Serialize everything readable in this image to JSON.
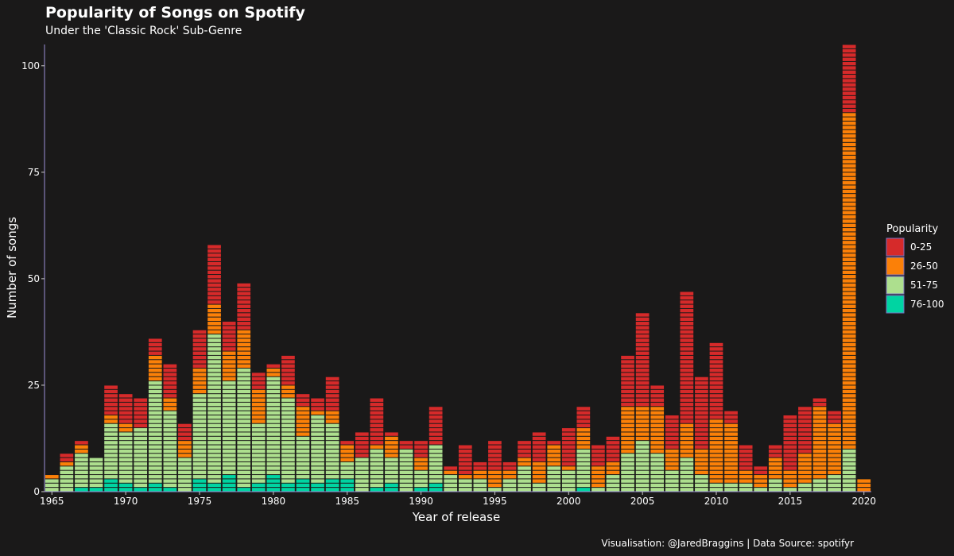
{
  "chart_data": {
    "type": "bar",
    "stacked": true,
    "title": "Popularity of Songs on Spotify",
    "subtitle": "Under the 'Classic Rock' Sub-Genre",
    "xlabel": "Year of release",
    "ylabel": "Number of songs",
    "caption": "Visualisation: @JaredBraggins | Data Source: spotifyr",
    "ylim": [
      0,
      105
    ],
    "xlim": [
      1964.5,
      2020.5
    ],
    "x_ticks": [
      1965,
      1970,
      1975,
      1980,
      1985,
      1990,
      1995,
      2000,
      2005,
      2010,
      2015,
      2020
    ],
    "y_ticks": [
      0,
      25,
      50,
      75,
      100
    ],
    "grid": false,
    "legend": {
      "title": "Popularity",
      "placement": "right"
    },
    "colors": {
      "0-25": "#d62a2a",
      "26-50": "#fb8008",
      "51-75": "#addf8e",
      "76-100": "#00d4a2"
    },
    "series_order": [
      "76-100",
      "51-75",
      "26-50",
      "0-25"
    ],
    "x": [
      1965,
      1966,
      1967,
      1968,
      1969,
      1970,
      1971,
      1972,
      1973,
      1974,
      1975,
      1976,
      1977,
      1978,
      1979,
      1980,
      1981,
      1982,
      1983,
      1984,
      1985,
      1986,
      1987,
      1988,
      1989,
      1990,
      1991,
      1992,
      1993,
      1994,
      1995,
      1996,
      1997,
      1998,
      1999,
      2000,
      2001,
      2002,
      2003,
      2004,
      2005,
      2006,
      2007,
      2008,
      2009,
      2010,
      2011,
      2012,
      2013,
      2014,
      2015,
      2016,
      2017,
      2018,
      2019,
      2020
    ],
    "series": [
      {
        "name": "76-100",
        "values": [
          0,
          0,
          1,
          1,
          3,
          2,
          1,
          2,
          1,
          0,
          3,
          2,
          4,
          1,
          2,
          4,
          2,
          3,
          2,
          3,
          3,
          0,
          1,
          2,
          0,
          1,
          2,
          0,
          0,
          0,
          0,
          0,
          0,
          0,
          0,
          0,
          1,
          0,
          0,
          0,
          0,
          0,
          0,
          0,
          0,
          0,
          0,
          0,
          0,
          0,
          0,
          0,
          0,
          0,
          0,
          0
        ]
      },
      {
        "name": "51-75",
        "values": [
          3,
          6,
          8,
          7,
          13,
          12,
          14,
          24,
          18,
          8,
          20,
          35,
          22,
          28,
          14,
          23,
          20,
          10,
          16,
          13,
          4,
          8,
          9,
          6,
          10,
          4,
          9,
          4,
          3,
          3,
          1,
          3,
          6,
          2,
          6,
          5,
          9,
          1,
          4,
          9,
          12,
          9,
          5,
          8,
          4,
          2,
          2,
          2,
          1,
          3,
          1,
          2,
          3,
          4,
          10,
          0
        ]
      },
      {
        "name": "26-50",
        "values": [
          1,
          1,
          2,
          0,
          2,
          2,
          0,
          6,
          3,
          4,
          6,
          7,
          7,
          9,
          8,
          2,
          3,
          7,
          1,
          3,
          4,
          0,
          1,
          5,
          0,
          3,
          0,
          1,
          1,
          2,
          4,
          2,
          2,
          5,
          5,
          1,
          5,
          5,
          3,
          11,
          8,
          11,
          5,
          8,
          6,
          15,
          14,
          3,
          3,
          5,
          4,
          7,
          17,
          12,
          79,
          3
        ]
      },
      {
        "name": "0-25",
        "values": [
          0,
          2,
          1,
          0,
          7,
          7,
          7,
          4,
          8,
          4,
          9,
          14,
          7,
          11,
          4,
          1,
          7,
          3,
          3,
          8,
          1,
          6,
          11,
          1,
          2,
          4,
          9,
          1,
          7,
          2,
          7,
          2,
          4,
          7,
          1,
          9,
          5,
          5,
          6,
          12,
          22,
          5,
          8,
          31,
          17,
          18,
          3,
          6,
          2,
          3,
          13,
          11,
          2,
          3,
          16,
          0
        ]
      }
    ]
  }
}
